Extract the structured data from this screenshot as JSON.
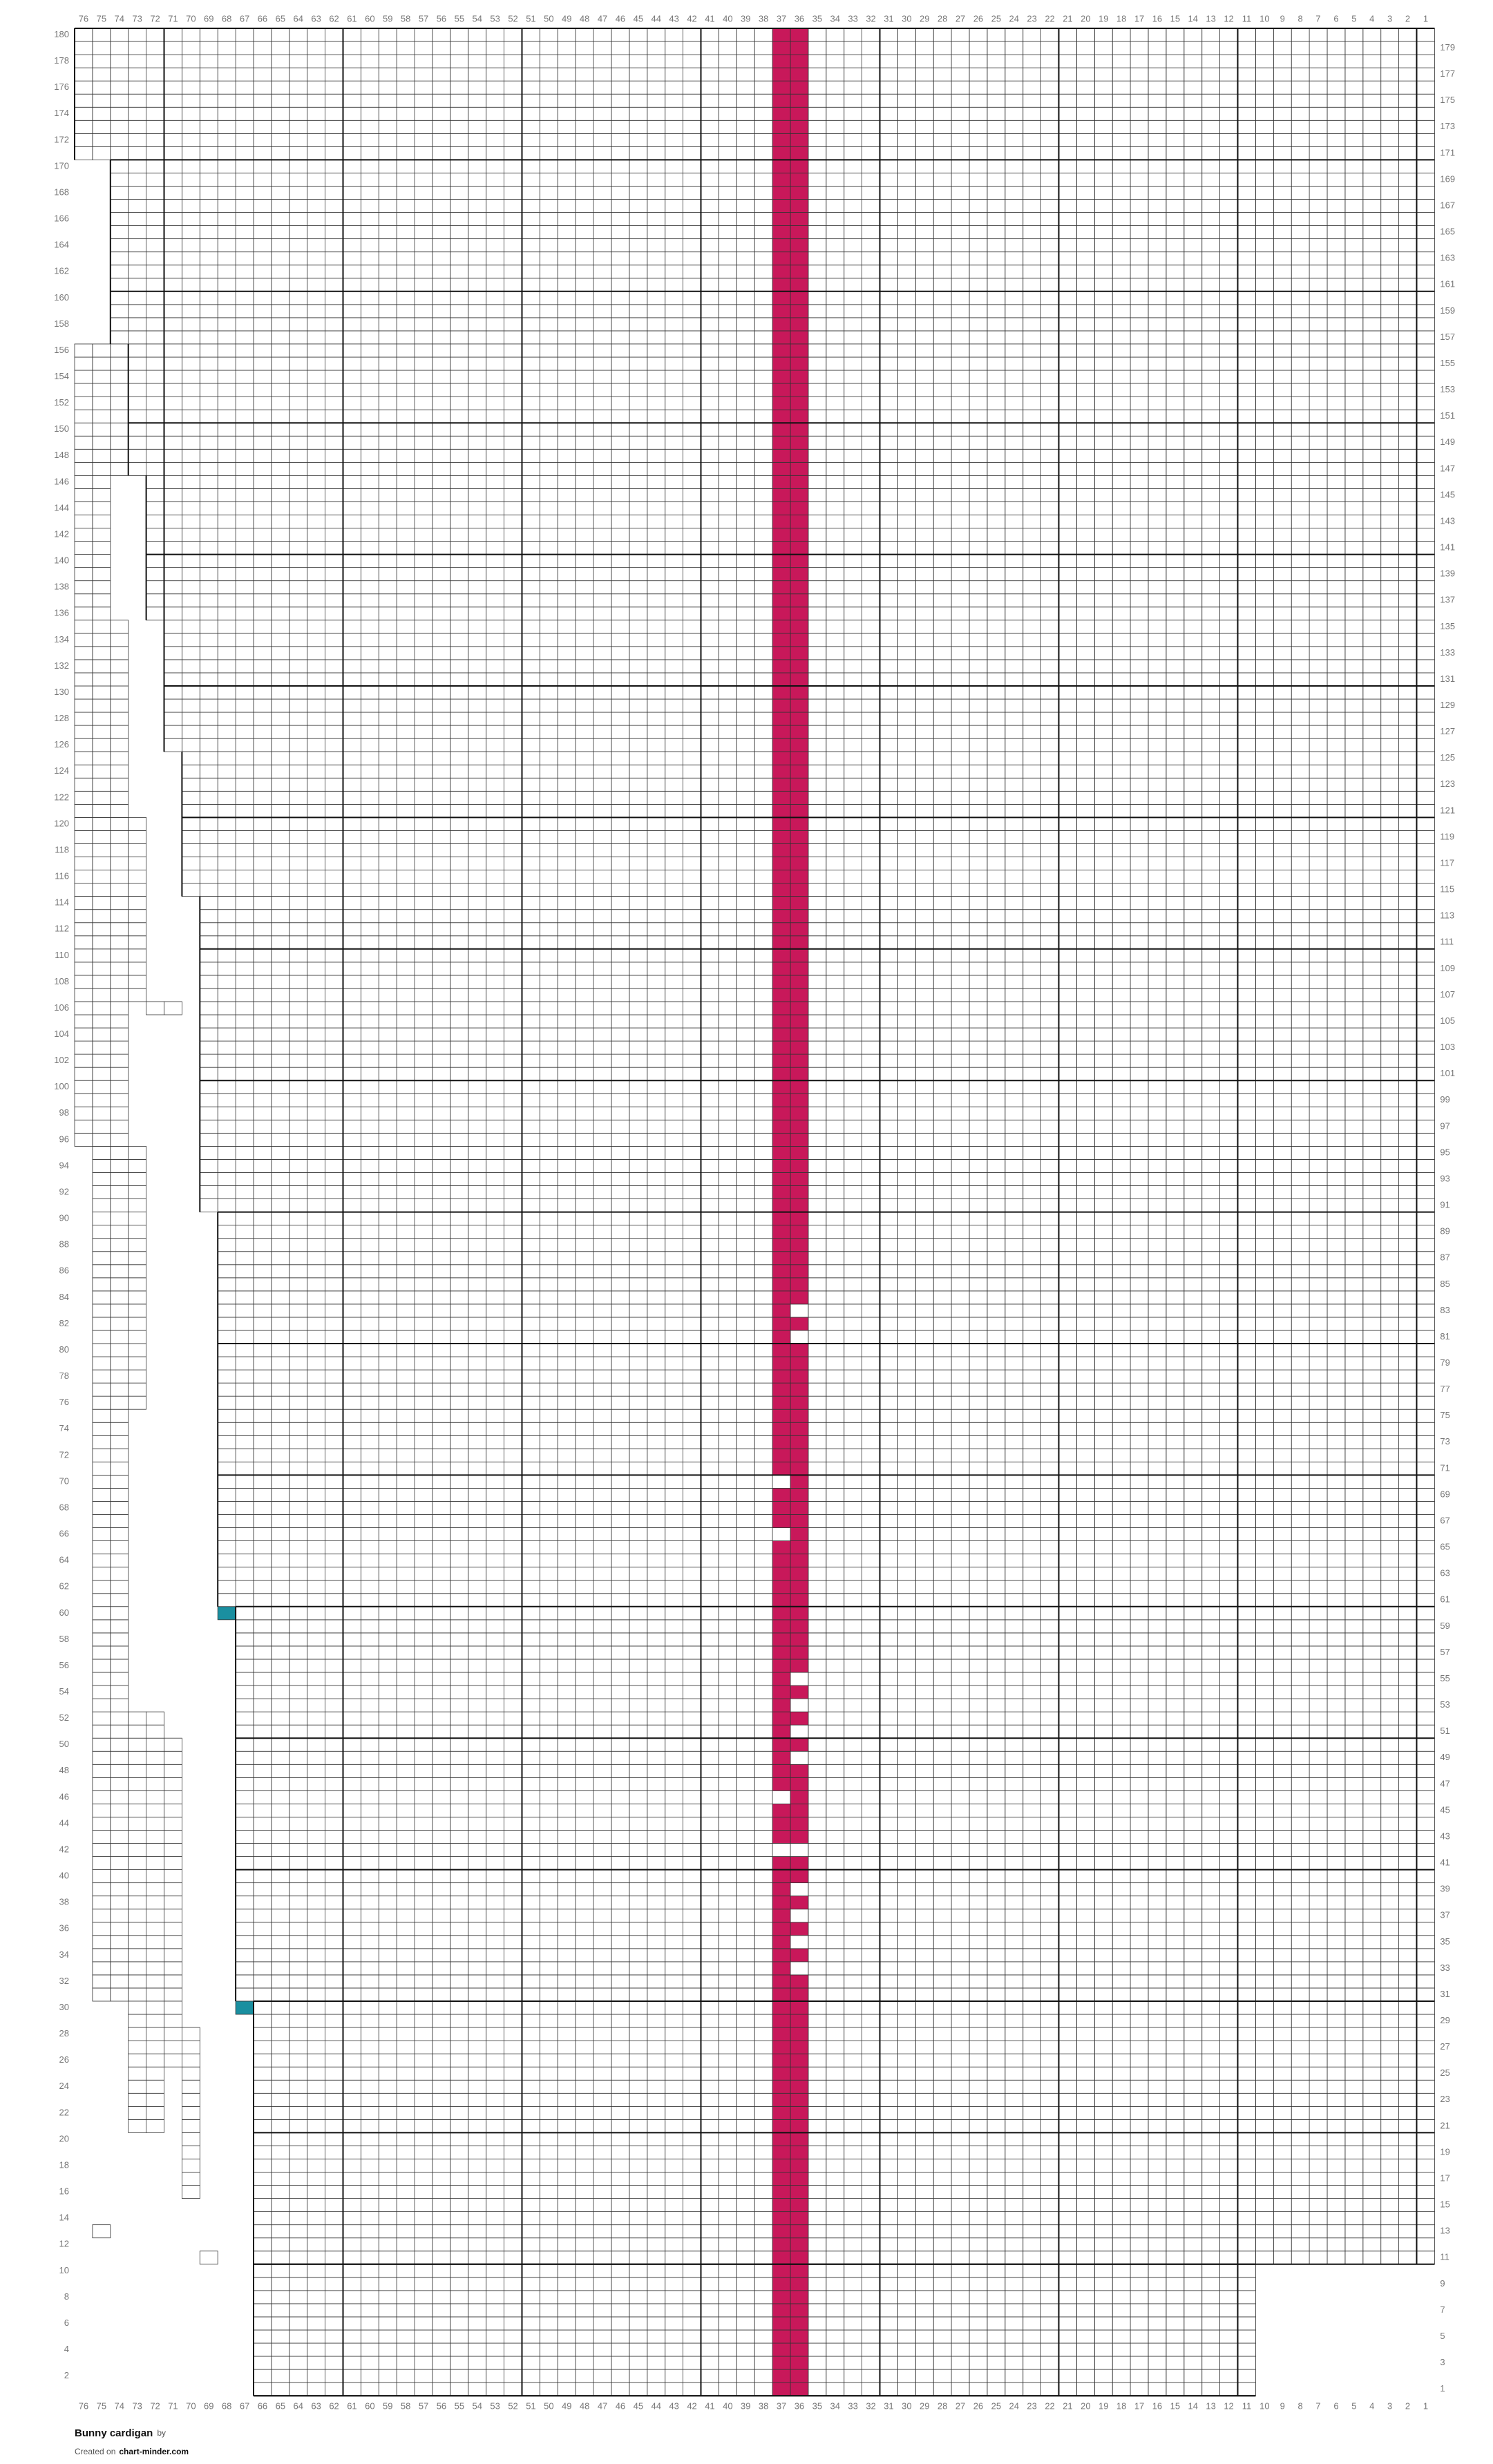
{
  "chart": {
    "title": "Bunny cardigan",
    "by": "by",
    "created_on": "Created on",
    "site": "chart-minder.com",
    "column_labels": [
      76,
      75,
      74,
      73,
      72,
      71,
      70,
      69,
      68,
      67,
      66,
      65,
      64,
      63,
      62,
      61,
      60,
      59,
      58,
      57,
      56,
      55,
      54,
      53,
      52,
      51,
      50,
      49,
      48,
      47,
      46,
      45,
      44,
      43,
      42,
      41,
      40,
      39,
      38,
      37,
      36,
      35,
      34,
      33,
      32,
      31,
      30,
      29,
      28,
      27,
      26,
      25,
      24,
      23,
      22,
      21,
      20,
      19,
      18,
      17,
      16,
      15,
      14,
      13,
      12,
      11,
      10,
      9,
      8,
      7,
      6,
      5,
      4,
      3,
      2,
      1
    ],
    "row_count": 180,
    "main_blocks": [
      {
        "rows": [
          171,
          180
        ],
        "cols": [
          76,
          1
        ]
      },
      {
        "rows": [
          157,
          170
        ],
        "cols": [
          74,
          1
        ]
      },
      {
        "rows": [
          147,
          156
        ],
        "cols": [
          73,
          1
        ]
      },
      {
        "rows": [
          136,
          146
        ],
        "cols": [
          72,
          1
        ]
      },
      {
        "rows": [
          126,
          135
        ],
        "cols": [
          71,
          1
        ]
      },
      {
        "rows": [
          115,
          125
        ],
        "cols": [
          70,
          1
        ]
      },
      {
        "rows": [
          91,
          114
        ],
        "cols": [
          69,
          1
        ]
      },
      {
        "rows": [
          61,
          90
        ],
        "cols": [
          68,
          1
        ]
      },
      {
        "rows": [
          31,
          60
        ],
        "cols": [
          67,
          1
        ]
      },
      {
        "rows": [
          11,
          30
        ],
        "cols": [
          66,
          1
        ]
      },
      {
        "rows": [
          1,
          10
        ],
        "cols": [
          66,
          11
        ]
      }
    ],
    "edge_blocks": [
      {
        "rows": [
          147,
          156
        ],
        "cols": [
          76,
          74
        ]
      },
      {
        "rows": [
          136,
          146
        ],
        "cols": [
          76,
          75
        ]
      },
      {
        "rows": [
          96,
          135
        ],
        "cols": [
          76,
          74
        ]
      },
      {
        "rows": [
          107,
          120
        ],
        "cols": [
          73,
          73
        ]
      },
      {
        "rows": [
          76,
          95
        ],
        "cols": [
          75,
          73
        ]
      },
      {
        "rows": [
          61,
          75
        ],
        "cols": [
          75,
          74
        ]
      },
      {
        "rows": [
          31,
          60
        ],
        "cols": [
          75,
          74
        ]
      },
      {
        "rows": [
          21,
          52
        ],
        "cols": [
          73,
          72
        ]
      },
      {
        "rows": [
          26,
          50
        ],
        "cols": [
          71,
          71
        ]
      },
      {
        "rows": [
          16,
          28
        ],
        "cols": [
          70,
          70
        ]
      },
      {
        "rows": [
          13,
          13
        ],
        "cols": [
          75,
          75
        ]
      },
      {
        "rows": [
          11,
          11
        ],
        "cols": [
          69,
          69
        ]
      },
      {
        "rows": [
          106,
          106
        ],
        "cols": [
          72,
          71
        ]
      },
      {
        "rows": [
          60,
          60
        ],
        "cols": [
          68,
          68
        ]
      },
      {
        "rows": [
          30,
          30
        ],
        "cols": [
          67,
          67
        ]
      }
    ],
    "fills": [
      {
        "rows": [
          1,
          180
        ],
        "cols": [
          37,
          36
        ],
        "color": "#c8185a"
      },
      {
        "rows": [
          83,
          83
        ],
        "cols": [
          36,
          36
        ],
        "color": "#ffffff"
      },
      {
        "rows": [
          81,
          81
        ],
        "cols": [
          36,
          36
        ],
        "color": "#ffffff"
      },
      {
        "rows": [
          70,
          70
        ],
        "cols": [
          37,
          37
        ],
        "color": "#ffffff"
      },
      {
        "rows": [
          66,
          66
        ],
        "cols": [
          37,
          37
        ],
        "color": "#ffffff"
      },
      {
        "rows": [
          55,
          55
        ],
        "cols": [
          36,
          36
        ],
        "color": "#ffffff"
      },
      {
        "rows": [
          53,
          53
        ],
        "cols": [
          36,
          36
        ],
        "color": "#ffffff"
      },
      {
        "rows": [
          51,
          51
        ],
        "cols": [
          36,
          36
        ],
        "color": "#ffffff"
      },
      {
        "rows": [
          49,
          49
        ],
        "cols": [
          36,
          36
        ],
        "color": "#ffffff"
      },
      {
        "rows": [
          46,
          46
        ],
        "cols": [
          37,
          37
        ],
        "color": "#ffffff"
      },
      {
        "rows": [
          42,
          42
        ],
        "cols": [
          37,
          36
        ],
        "color": "#ffffff"
      },
      {
        "rows": [
          39,
          39
        ],
        "cols": [
          36,
          36
        ],
        "color": "#ffffff"
      },
      {
        "rows": [
          37,
          37
        ],
        "cols": [
          36,
          36
        ],
        "color": "#ffffff"
      },
      {
        "rows": [
          35,
          35
        ],
        "cols": [
          36,
          36
        ],
        "color": "#ffffff"
      },
      {
        "rows": [
          33,
          33
        ],
        "cols": [
          36,
          36
        ],
        "color": "#ffffff"
      },
      {
        "rows": [
          60,
          60
        ],
        "cols": [
          68,
          68
        ],
        "color": "#1a8fa0"
      },
      {
        "rows": [
          30,
          30
        ],
        "cols": [
          67,
          67
        ],
        "color": "#1a8fa0"
      }
    ]
  }
}
